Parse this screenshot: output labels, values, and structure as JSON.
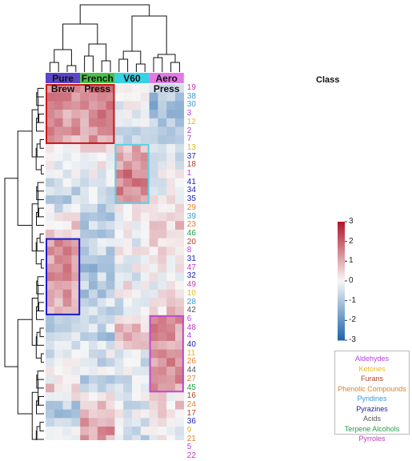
{
  "chart_data": {
    "type": "heatmap",
    "title": "",
    "groups": [
      {
        "name": "Pure Brew",
        "color": "#5a46c8"
      },
      {
        "name": "French Press",
        "color": "#47c24a"
      },
      {
        "name": "V60",
        "color": "#36d2e6"
      },
      {
        "name": "Aero Press",
        "color": "#e27ae6"
      }
    ],
    "columns_per_group": 4,
    "row_header": "Class",
    "rows": [
      {
        "label": "19",
        "class": "Pyrroles"
      },
      {
        "label": "38",
        "class": "Pyridines"
      },
      {
        "label": "30",
        "class": "Pyridines"
      },
      {
        "label": "3",
        "class": "Aldehydes"
      },
      {
        "label": "12",
        "class": "Ketones"
      },
      {
        "label": "2",
        "class": "Aldehydes"
      },
      {
        "label": "7",
        "class": "Aldehydes"
      },
      {
        "label": "13",
        "class": "Ketones"
      },
      {
        "label": "37",
        "class": "Pyrazines"
      },
      {
        "label": "18",
        "class": "Furans"
      },
      {
        "label": "1",
        "class": "Aldehydes"
      },
      {
        "label": "41",
        "class": "Pyrazines"
      },
      {
        "label": "34",
        "class": "Pyrazines"
      },
      {
        "label": "35",
        "class": "Pyrazines"
      },
      {
        "label": "29",
        "class": "Phenolic Compounds"
      },
      {
        "label": "39",
        "class": "Pyridines"
      },
      {
        "label": "23",
        "class": "Phenolic Compounds"
      },
      {
        "label": "46",
        "class": "Terpene Alcohols"
      },
      {
        "label": "20",
        "class": "Furans"
      },
      {
        "label": "8",
        "class": "Aldehydes"
      },
      {
        "label": "31",
        "class": "Pyrazines"
      },
      {
        "label": "47",
        "class": "Pyrroles"
      },
      {
        "label": "32",
        "class": "Pyrazines"
      },
      {
        "label": "49",
        "class": "Pyrroles"
      },
      {
        "label": "10",
        "class": "Ketones"
      },
      {
        "label": "28",
        "class": "Pyridines"
      },
      {
        "label": "42",
        "class": "Acids"
      },
      {
        "label": "6",
        "class": "Aldehydes"
      },
      {
        "label": "48",
        "class": "Pyrroles"
      },
      {
        "label": "4",
        "class": "Aldehydes"
      },
      {
        "label": "40",
        "class": "Pyrazines"
      },
      {
        "label": "11",
        "class": "Ketones"
      },
      {
        "label": "26",
        "class": "Phenolic Compounds"
      },
      {
        "label": "44",
        "class": "Acids"
      },
      {
        "label": "27",
        "class": "Phenolic Compounds"
      },
      {
        "label": "45",
        "class": "Terpene Alcohols"
      },
      {
        "label": "16",
        "class": "Furans"
      },
      {
        "label": "24",
        "class": "Phenolic Compounds"
      },
      {
        "label": "17",
        "class": "Furans"
      },
      {
        "label": "36",
        "class": "Pyrazines"
      },
      {
        "label": "9",
        "class": "Ketones"
      },
      {
        "label": "21",
        "class": "Phenolic Compounds"
      },
      {
        "label": "5",
        "class": "Aldehydes"
      },
      {
        "label": "22",
        "class": "Pyrroles"
      }
    ],
    "row_group_pattern": [
      [
        1.6,
        1.6,
        0.2,
        -0.6
      ],
      [
        1.5,
        1.4,
        0.0,
        -1.0
      ],
      [
        1.4,
        1.5,
        -0.2,
        -1.3
      ],
      [
        1.2,
        1.4,
        -0.3,
        -1.2
      ],
      [
        1.3,
        1.2,
        -0.2,
        -1.0
      ],
      [
        1.2,
        1.3,
        -0.4,
        -1.2
      ],
      [
        1.0,
        1.1,
        -0.5,
        -1.1
      ],
      [
        -0.1,
        0.2,
        1.0,
        -0.4
      ],
      [
        -0.4,
        -0.1,
        1.2,
        -0.4
      ],
      [
        0.0,
        0.1,
        1.3,
        -0.2
      ],
      [
        -0.3,
        -0.2,
        1.6,
        -0.1
      ],
      [
        -0.5,
        -0.3,
        1.6,
        -0.2
      ],
      [
        -0.8,
        -0.4,
        1.4,
        0.0
      ],
      [
        -0.7,
        -0.5,
        1.3,
        0.1
      ],
      [
        -0.3,
        -0.9,
        0.3,
        0.4
      ],
      [
        0.2,
        -0.9,
        0.0,
        0.3
      ],
      [
        0.5,
        -0.8,
        -0.2,
        0.6
      ],
      [
        0.3,
        -1.0,
        0.3,
        0.5
      ],
      [
        1.2,
        -0.4,
        -0.3,
        0.4
      ],
      [
        1.3,
        -0.7,
        0.0,
        0.3
      ],
      [
        1.2,
        -0.8,
        -0.1,
        0.2
      ],
      [
        1.4,
        -1.1,
        0.0,
        0.1
      ],
      [
        1.3,
        -0.8,
        -0.2,
        0.0
      ],
      [
        1.2,
        -0.9,
        0.1,
        -0.1
      ],
      [
        1.1,
        -1.0,
        0.0,
        0.2
      ],
      [
        1.0,
        -0.6,
        -0.3,
        0.3
      ],
      [
        0.6,
        -0.5,
        -0.4,
        0.5
      ],
      [
        -0.6,
        -0.8,
        0.4,
        1.2
      ],
      [
        -0.7,
        -0.5,
        0.6,
        1.3
      ],
      [
        -0.4,
        -0.9,
        0.8,
        1.2
      ],
      [
        -0.6,
        -0.4,
        0.3,
        1.0
      ],
      [
        -0.3,
        -0.3,
        -0.3,
        1.3
      ],
      [
        -0.2,
        -0.6,
        -0.5,
        1.4
      ],
      [
        0.0,
        -0.4,
        -0.2,
        1.2
      ],
      [
        0.2,
        -0.7,
        -0.4,
        1.5
      ],
      [
        0.5,
        -0.5,
        -0.3,
        1.1
      ],
      [
        0.3,
        0.4,
        -0.2,
        0.3
      ],
      [
        -0.9,
        0.8,
        -0.4,
        0.5
      ],
      [
        -1.4,
        0.6,
        -0.1,
        0.3
      ],
      [
        -0.3,
        1.0,
        -0.6,
        0.1
      ],
      [
        -0.2,
        1.2,
        -0.4,
        -0.2
      ],
      [
        0.1,
        1.1,
        -0.7,
        -0.1
      ],
      [
        -0.5,
        0.9,
        -0.3,
        -0.3
      ],
      [
        0.0,
        1.2,
        -0.6,
        -0.4
      ]
    ],
    "color_scale": {
      "min": -3,
      "max": 3,
      "ticks": [
        3,
        2,
        1,
        0,
        -1,
        -2,
        -3
      ],
      "low": "#2166ac",
      "mid": "#f7f7f7",
      "high": "#b2182b"
    },
    "highlight_boxes": [
      {
        "group_from": "Pure Brew",
        "group_to": "French Press",
        "row_from": "19",
        "row_to": "7",
        "color": "#c81818"
      },
      {
        "group_from": "V60",
        "group_to": "V60",
        "row_from": "13",
        "row_to": "35",
        "color": "#58d4e6"
      },
      {
        "group_from": "Pure Brew",
        "group_to": "Pure Brew",
        "row_from": "20",
        "row_to": "42",
        "color": "#1c1ccf"
      },
      {
        "group_from": "Aero Press",
        "group_to": "Aero Press",
        "row_from": "6",
        "row_to": "45",
        "color": "#c04ad0"
      }
    ],
    "legend": [
      {
        "name": "Aldehydes",
        "color": "#b13fe0"
      },
      {
        "name": "Ketones",
        "color": "#e6b824"
      },
      {
        "name": "Furans",
        "color": "#b0412a"
      },
      {
        "name": "Phenolic Compounds",
        "color": "#e0802c"
      },
      {
        "name": "Pyridines",
        "color": "#3a9ad9"
      },
      {
        "name": "Pyrazines",
        "color": "#1c1cb4"
      },
      {
        "name": "Acids",
        "color": "#555555"
      },
      {
        "name": "Terpene Alcohols",
        "color": "#22a046"
      },
      {
        "name": "Pyrroles",
        "color": "#c03cb8"
      }
    ],
    "dendrogram": {
      "top": "column clustering",
      "left": "row clustering"
    }
  }
}
